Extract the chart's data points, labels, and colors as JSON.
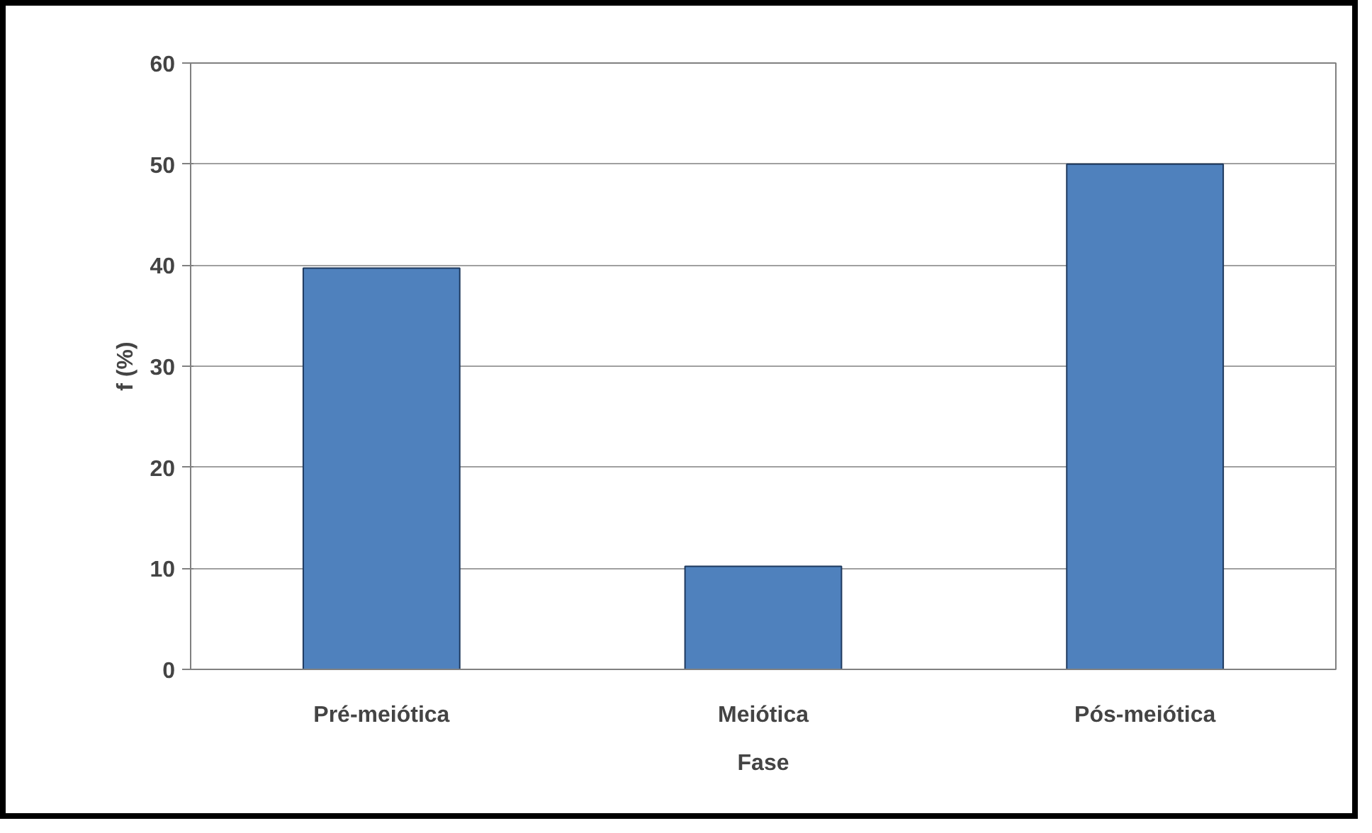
{
  "chart_data": {
    "type": "bar",
    "xlabel": "Fase",
    "ylabel": "f (%)",
    "categories": [
      "Pré-meiótica",
      "Meiótica",
      "Pós-meiótica"
    ],
    "values": [
      39.7,
      10.2,
      50.0
    ],
    "color": "#4f81bd",
    "ylim": [
      0,
      60
    ],
    "yticks": [
      0,
      10,
      20,
      30,
      40,
      50,
      60
    ],
    "grid": "y"
  }
}
